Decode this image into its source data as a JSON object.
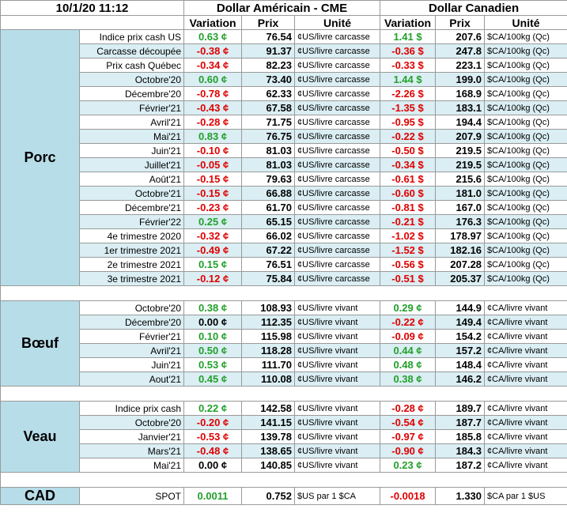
{
  "header": {
    "timestamp": "10/1/20 11:12",
    "us_title": "Dollar Américain - CME",
    "ca_title": "Dollar Canadien",
    "columns": [
      "Variation",
      "Prix",
      "Unité",
      "Variation",
      "Prix",
      "Unité"
    ]
  },
  "sections": [
    {
      "name": "Porc",
      "rows": [
        [
          "Indice prix cash US",
          "0.63 ¢",
          "76.54",
          "¢US/livre carcasse",
          "1.41 $",
          "207.6",
          "$CA/100kg (Qc)"
        ],
        [
          "Carcasse découpée",
          "-0.38 ¢",
          "91.37",
          "¢US/livre carcasse",
          "-0.36 $",
          "247.8",
          "$CA/100kg (Qc)"
        ],
        [
          "Prix cash Québec",
          "-0.34 ¢",
          "82.23",
          "¢US/livre carcasse",
          "-0.33 $",
          "223.1",
          "$CA/100kg (Qc)"
        ],
        [
          "Octobre'20",
          "0.60 ¢",
          "73.40",
          "¢US/livre carcasse",
          "1.44 $",
          "199.0",
          "$CA/100kg (Qc)"
        ],
        [
          "Décembre'20",
          "-0.78 ¢",
          "62.33",
          "¢US/livre carcasse",
          "-2.26 $",
          "168.9",
          "$CA/100kg (Qc)"
        ],
        [
          "Février'21",
          "-0.43 ¢",
          "67.58",
          "¢US/livre carcasse",
          "-1.35 $",
          "183.1",
          "$CA/100kg (Qc)"
        ],
        [
          "Avril'21",
          "-0.28 ¢",
          "71.75",
          "¢US/livre carcasse",
          "-0.95 $",
          "194.4",
          "$CA/100kg (Qc)"
        ],
        [
          "Mai'21",
          "0.83 ¢",
          "76.75",
          "¢US/livre carcasse",
          "-0.22 $",
          "207.9",
          "$CA/100kg (Qc)"
        ],
        [
          "Juin'21",
          "-0.10 ¢",
          "81.03",
          "¢US/livre carcasse",
          "-0.50 $",
          "219.5",
          "$CA/100kg (Qc)"
        ],
        [
          "Juillet'21",
          "-0.05 ¢",
          "81.03",
          "¢US/livre carcasse",
          "-0.34 $",
          "219.5",
          "$CA/100kg (Qc)"
        ],
        [
          "Août'21",
          "-0.15 ¢",
          "79.63",
          "¢US/livre carcasse",
          "-0.61 $",
          "215.6",
          "$CA/100kg (Qc)"
        ],
        [
          "Octobre'21",
          "-0.15 ¢",
          "66.88",
          "¢US/livre carcasse",
          "-0.60 $",
          "181.0",
          "$CA/100kg (Qc)"
        ],
        [
          "Décembre'21",
          "-0.23 ¢",
          "61.70",
          "¢US/livre carcasse",
          "-0.81 $",
          "167.0",
          "$CA/100kg (Qc)"
        ],
        [
          "Février'22",
          "0.25 ¢",
          "65.15",
          "¢US/livre carcasse",
          "-0.21 $",
          "176.3",
          "$CA/100kg (Qc)"
        ],
        [
          "4e trimestre 2020",
          "-0.32 ¢",
          "66.02",
          "¢US/livre carcasse",
          "-1.02 $",
          "178.97",
          "$CA/100kg (Qc)"
        ],
        [
          "1er trimestre 2021",
          "-0.49 ¢",
          "67.22",
          "¢US/livre carcasse",
          "-1.52 $",
          "182.16",
          "$CA/100kg (Qc)"
        ],
        [
          "2e trimestre 2021",
          "0.15 ¢",
          "76.51",
          "¢US/livre carcasse",
          "-0.56 $",
          "207.28",
          "$CA/100kg (Qc)"
        ],
        [
          "3e trimestre 2021",
          "-0.12 ¢",
          "75.84",
          "¢US/livre carcasse",
          "-0.51 $",
          "205.37",
          "$CA/100kg (Qc)"
        ]
      ]
    },
    {
      "name": "Bœuf",
      "rows": [
        [
          "Octobre'20",
          "0.38 ¢",
          "108.93",
          "¢US/livre vivant",
          "0.29 ¢",
          "144.9",
          "¢CA/livre vivant"
        ],
        [
          "Décembre'20",
          "0.00 ¢",
          "112.35",
          "¢US/livre vivant",
          "-0.22 ¢",
          "149.4",
          "¢CA/livre vivant"
        ],
        [
          "Février'21",
          "0.10 ¢",
          "115.98",
          "¢US/livre vivant",
          "-0.09 ¢",
          "154.2",
          "¢CA/livre vivant"
        ],
        [
          "Avril'21",
          "0.50 ¢",
          "118.28",
          "¢US/livre vivant",
          "0.44 ¢",
          "157.2",
          "¢CA/livre vivant"
        ],
        [
          "Juin'21",
          "0.53 ¢",
          "111.70",
          "¢US/livre vivant",
          "0.48 ¢",
          "148.4",
          "¢CA/livre vivant"
        ],
        [
          "Aout'21",
          "0.45 ¢",
          "110.08",
          "¢US/livre vivant",
          "0.38 ¢",
          "146.2",
          "¢CA/livre vivant"
        ]
      ]
    },
    {
      "name": "Veau",
      "rows": [
        [
          "Indice prix cash",
          "0.22 ¢",
          "142.58",
          "¢US/livre vivant",
          "-0.28 ¢",
          "189.7",
          "¢CA/livre vivant"
        ],
        [
          "Octobre'20",
          "-0.20 ¢",
          "141.15",
          "¢US/livre vivant",
          "-0.54 ¢",
          "187.7",
          "¢CA/livre vivant"
        ],
        [
          "Janvier'21",
          "-0.53 ¢",
          "139.78",
          "¢US/livre vivant",
          "-0.97 ¢",
          "185.8",
          "¢CA/livre vivant"
        ],
        [
          "Mars'21",
          "-0.48 ¢",
          "138.65",
          "¢US/livre vivant",
          "-0.90 ¢",
          "184.3",
          "¢CA/livre vivant"
        ],
        [
          "Mai'21",
          "0.00 ¢",
          "140.85",
          "¢US/livre vivant",
          "0.23 ¢",
          "187.2",
          "¢CA/livre vivant"
        ]
      ]
    },
    {
      "name": "CAD",
      "rows": [
        [
          "SPOT",
          "0.0011",
          "0.752",
          "$US par 1 $CA",
          "-0.0018",
          "1.330",
          "$CA par 1 $US"
        ]
      ]
    }
  ]
}
